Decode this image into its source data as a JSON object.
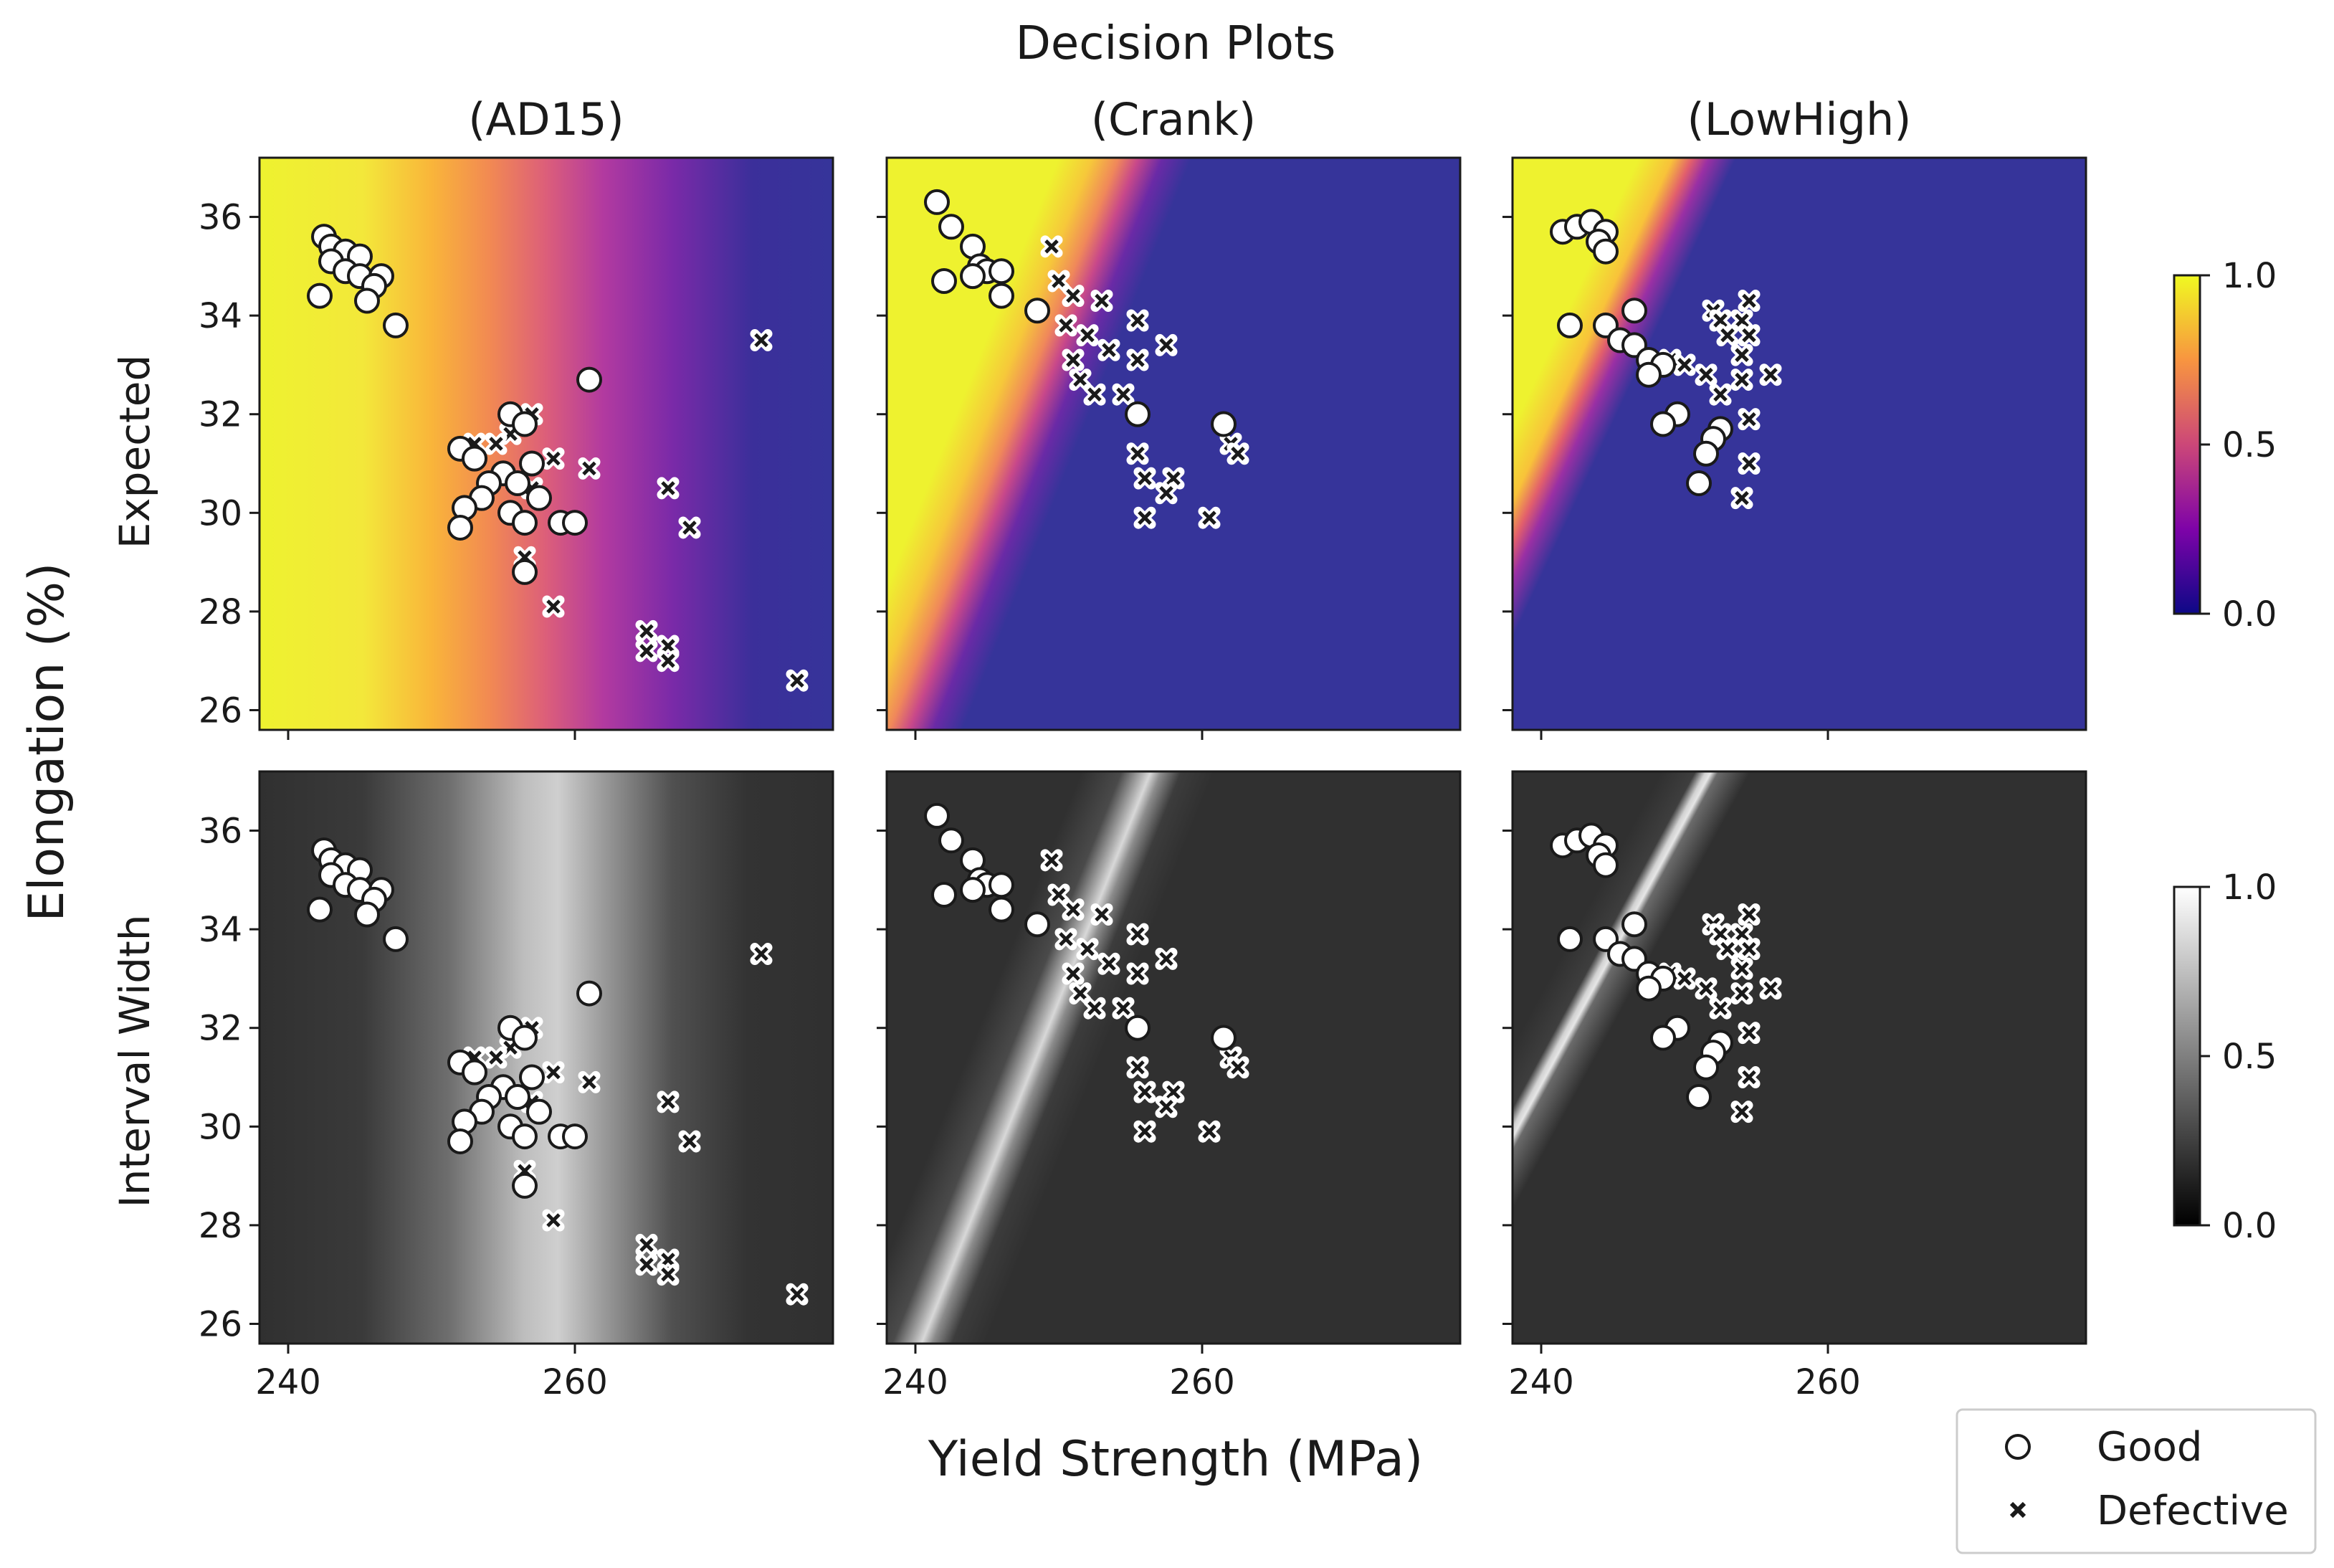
{
  "chart_data": {
    "type": "scatter",
    "title": "Decision Plots",
    "xlabel": "Yield Strength (MPa)",
    "ylabel": "Elongation (%)",
    "xlim": [
      238,
      278
    ],
    "ylim": [
      25.6,
      37.2
    ],
    "x_ticks": [
      "240",
      "260"
    ],
    "y_ticks": [
      "26",
      "28",
      "30",
      "32",
      "34",
      "36"
    ],
    "columns": [
      "(AD15)",
      "(Crank)",
      "(LowHigh)"
    ],
    "row_labels": [
      "Expected",
      "Interval Width"
    ],
    "colorbars": [
      {
        "row": "Expected",
        "colormap": "plasma",
        "ticks": [
          "0.0",
          "0.5",
          "1.0"
        ],
        "range": [
          0,
          1
        ]
      },
      {
        "row": "Interval Width",
        "colormap": "gray",
        "ticks": [
          "0.0",
          "0.5",
          "1.0"
        ],
        "range": [
          0,
          1
        ]
      }
    ],
    "legend": {
      "position": "bottom-right",
      "entries": [
        "Good",
        "Defective"
      ]
    },
    "series": [
      {
        "column": "(AD15)",
        "good": [
          [
            242.5,
            35.6
          ],
          [
            243,
            35.4
          ],
          [
            244,
            35.3
          ],
          [
            245,
            35.2
          ],
          [
            243,
            35.1
          ],
          [
            244,
            34.9
          ],
          [
            245,
            34.8
          ],
          [
            246.5,
            34.8
          ],
          [
            246,
            34.6
          ],
          [
            242.2,
            34.4
          ],
          [
            245.5,
            34.3
          ],
          [
            247.5,
            33.8
          ],
          [
            261,
            32.7
          ],
          [
            255.5,
            32.0
          ],
          [
            256.5,
            31.8
          ],
          [
            252,
            31.3
          ],
          [
            253,
            31.1
          ],
          [
            257,
            31.0
          ],
          [
            255,
            30.8
          ],
          [
            256,
            30.6
          ],
          [
            254,
            30.6
          ],
          [
            253.5,
            30.3
          ],
          [
            257.5,
            30.3
          ],
          [
            252.3,
            30.1
          ],
          [
            255.5,
            30.0
          ],
          [
            256.5,
            29.8
          ],
          [
            259,
            29.8
          ],
          [
            260,
            29.8
          ],
          [
            252,
            29.7
          ],
          [
            256.5,
            28.8
          ]
        ],
        "defective": [
          [
            273,
            33.5
          ],
          [
            257,
            32.0
          ],
          [
            255.5,
            31.6
          ],
          [
            253,
            31.4
          ],
          [
            254.5,
            31.4
          ],
          [
            258.5,
            31.1
          ],
          [
            261,
            30.9
          ],
          [
            257,
            30.5
          ],
          [
            266.5,
            30.5
          ],
          [
            268,
            29.7
          ],
          [
            256.5,
            29.1
          ],
          [
            258.5,
            28.1
          ],
          [
            265,
            27.6
          ],
          [
            265,
            27.2
          ],
          [
            266.5,
            27.3
          ],
          [
            266.5,
            27.0
          ],
          [
            275.5,
            26.6
          ]
        ]
      },
      {
        "column": "(Crank)",
        "good": [
          [
            241.5,
            36.3
          ],
          [
            242.5,
            35.8
          ],
          [
            244,
            35.4
          ],
          [
            244.5,
            35.0
          ],
          [
            245,
            34.9
          ],
          [
            246,
            34.9
          ],
          [
            244,
            34.8
          ],
          [
            242,
            34.7
          ],
          [
            246,
            34.4
          ],
          [
            248.5,
            34.1
          ],
          [
            255.5,
            32.0
          ],
          [
            261.5,
            31.8
          ]
        ],
        "defective": [
          [
            249.5,
            35.4
          ],
          [
            250,
            34.7
          ],
          [
            251,
            34.4
          ],
          [
            253,
            34.3
          ],
          [
            250.5,
            33.8
          ],
          [
            255.5,
            33.9
          ],
          [
            252,
            33.6
          ],
          [
            253.5,
            33.3
          ],
          [
            255.5,
            33.1
          ],
          [
            257.5,
            33.4
          ],
          [
            251,
            33.1
          ],
          [
            251.5,
            32.7
          ],
          [
            252.5,
            32.4
          ],
          [
            254.5,
            32.4
          ],
          [
            262,
            31.4
          ],
          [
            262.5,
            31.2
          ],
          [
            255.5,
            31.2
          ],
          [
            256,
            30.7
          ],
          [
            258,
            30.7
          ],
          [
            257.5,
            30.4
          ],
          [
            256,
            29.9
          ],
          [
            260.5,
            29.9
          ]
        ]
      },
      {
        "column": "(LowHigh)",
        "good": [
          [
            241.5,
            35.7
          ],
          [
            242.5,
            35.8
          ],
          [
            243.5,
            35.9
          ],
          [
            244.5,
            35.7
          ],
          [
            244,
            35.5
          ],
          [
            244.5,
            35.3
          ],
          [
            242,
            33.8
          ],
          [
            244.5,
            33.8
          ],
          [
            246.5,
            34.1
          ],
          [
            245.5,
            33.5
          ],
          [
            246.5,
            33.4
          ],
          [
            247.5,
            33.1
          ],
          [
            248.5,
            33.0
          ],
          [
            247.5,
            32.8
          ],
          [
            249.5,
            32.0
          ],
          [
            248.5,
            31.8
          ],
          [
            251,
            30.6
          ],
          [
            252.5,
            31.7
          ],
          [
            252,
            31.5
          ],
          [
            251.5,
            31.2
          ]
        ],
        "defective": [
          [
            252,
            34.1
          ],
          [
            252.5,
            33.9
          ],
          [
            254,
            33.9
          ],
          [
            254.5,
            34.3
          ],
          [
            253,
            33.6
          ],
          [
            254,
            33.2
          ],
          [
            254.5,
            33.6
          ],
          [
            256,
            32.8
          ],
          [
            249,
            33.1
          ],
          [
            250,
            33.0
          ],
          [
            251.5,
            32.8
          ],
          [
            252.5,
            32.4
          ],
          [
            254,
            32.7
          ],
          [
            254.5,
            31.9
          ],
          [
            254.5,
            31.0
          ],
          [
            254,
            30.3
          ]
        ]
      }
    ]
  }
}
